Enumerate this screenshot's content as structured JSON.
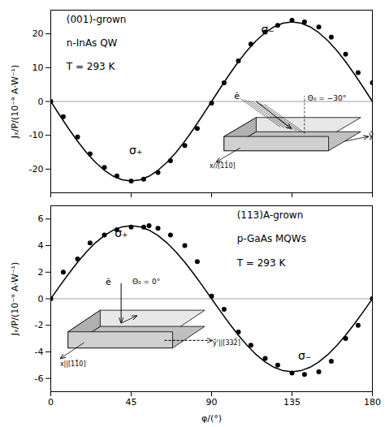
{
  "chart_data": [
    {
      "type": "scatter",
      "tick_labels": "y",
      "ylabel": "Jₓ/P/(10⁻⁹ A·W⁻¹)",
      "xlim": [
        0,
        180
      ],
      "xticks": [
        0,
        45,
        90,
        135,
        180
      ],
      "ylim": [
        -27,
        27
      ],
      "yticks": [
        -20,
        -10,
        0,
        10,
        20
      ],
      "hline": {
        "value": 0,
        "color": "#888888"
      },
      "series": [
        {
          "type": "line",
          "color": "#000000",
          "x": [
            0,
            5,
            10,
            15,
            20,
            25,
            30,
            35,
            40,
            45,
            50,
            55,
            60,
            65,
            70,
            75,
            80,
            85,
            90,
            95,
            100,
            105,
            110,
            115,
            120,
            125,
            130,
            135,
            140,
            145,
            150,
            155,
            160,
            165,
            170,
            175,
            180
          ],
          "values": [
            0,
            -4.081,
            -8.037,
            -11.75,
            -15.106,
            -18.002,
            -20.352,
            -22.083,
            -23.143,
            -23.5,
            -23.143,
            -22.083,
            -20.352,
            -18.002,
            -15.106,
            -11.75,
            -8.037,
            -4.081,
            0,
            4.081,
            8.037,
            11.75,
            15.106,
            18.002,
            20.352,
            22.083,
            23.143,
            23.5,
            23.143,
            22.083,
            20.352,
            18.002,
            15.106,
            11.75,
            8.037,
            4.081,
            0
          ]
        },
        {
          "type": "scatter",
          "color": "#000000",
          "x": [
            0,
            7,
            15,
            22,
            30,
            37,
            45,
            52,
            60,
            67,
            75,
            82,
            90,
            97,
            105,
            112,
            120,
            127,
            135,
            142,
            150,
            157,
            165,
            172,
            180
          ],
          "values": [
            0.0,
            -4.5,
            -10.5,
            -15.5,
            -19.5,
            -22.0,
            -23.5,
            -23.0,
            -21.0,
            -17.5,
            -13.0,
            -8.0,
            -0.5,
            5.5,
            12.0,
            17.0,
            20.5,
            22.5,
            24.0,
            23.5,
            22.0,
            19.0,
            14.0,
            8.5,
            5.5
          ]
        }
      ],
      "annotations": [
        "(001)-grown",
        "n-InAs QW",
        "T = 293 K",
        "σ₊",
        "σ₋",
        "ê",
        "Θ₀ = −30°",
        "ȳ",
        "x//[11̄0]"
      ]
    },
    {
      "type": "scatter",
      "xlabel": "φ/(°)",
      "ylabel": "Jₓ/P/(10⁻⁹ A·W⁻¹)",
      "xlim": [
        0,
        180
      ],
      "xticks": [
        0,
        45,
        90,
        135,
        180
      ],
      "ylim": [
        -7,
        7
      ],
      "yticks": [
        -6,
        -4,
        -2,
        0,
        2,
        4,
        6
      ],
      "hline": {
        "value": 0,
        "color": "#888888"
      },
      "series": [
        {
          "type": "line",
          "color": "#000000",
          "x": [
            0,
            5,
            10,
            15,
            20,
            25,
            30,
            35,
            40,
            45,
            50,
            55,
            60,
            65,
            70,
            75,
            80,
            85,
            90,
            95,
            100,
            105,
            110,
            115,
            120,
            125,
            130,
            135,
            140,
            145,
            150,
            155,
            160,
            165,
            170,
            175,
            180
          ],
          "values": [
            0,
            0.955,
            1.881,
            2.75,
            3.535,
            4.213,
            4.763,
            5.168,
            5.416,
            5.5,
            5.416,
            5.168,
            4.763,
            4.213,
            3.535,
            2.75,
            1.881,
            0.955,
            0,
            -0.955,
            -1.881,
            -2.75,
            -3.535,
            -4.213,
            -4.763,
            -5.168,
            -5.416,
            -5.5,
            -5.416,
            -5.168,
            -4.763,
            -4.213,
            -3.535,
            -2.75,
            -1.881,
            -0.955,
            0
          ]
        },
        {
          "type": "scatter",
          "color": "#000000",
          "x": [
            0,
            7,
            15,
            22,
            30,
            37,
            45,
            52,
            55,
            60,
            67,
            75,
            82,
            90,
            97,
            105,
            112,
            120,
            127,
            135,
            142,
            150,
            157,
            165,
            172,
            180
          ],
          "values": [
            0.0,
            2.0,
            3.0,
            4.2,
            4.8,
            5.2,
            5.4,
            5.4,
            5.5,
            5.3,
            4.8,
            4.0,
            2.8,
            0.2,
            -0.8,
            -2.5,
            -3.5,
            -4.5,
            -5.0,
            -5.6,
            -5.7,
            -5.5,
            -4.7,
            -3.0,
            -2.0,
            0.0
          ]
        }
      ],
      "annotations": [
        "(113)A-grown",
        "p-GaAs MQWs",
        "T = 293 K",
        "σ₊",
        "σ₋",
        "ê",
        "Θ₀ = 0°",
        "ȳ'||[332̄]",
        "x||[11̄0]"
      ]
    }
  ]
}
